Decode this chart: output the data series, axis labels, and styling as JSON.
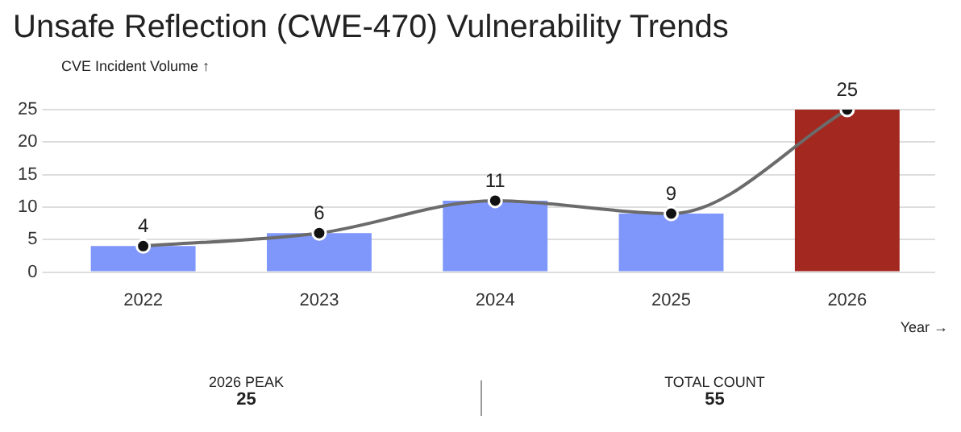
{
  "chart_data": {
    "type": "bar",
    "title": "Unsafe Reflection (CWE-470) Vulnerability Trends",
    "ylabel": "CVE Incident Volume ↑",
    "xlabel": "Year →",
    "categories": [
      "2022",
      "2023",
      "2024",
      "2025",
      "2026"
    ],
    "ylim": [
      0,
      25
    ],
    "yticks": [
      0,
      5,
      10,
      15,
      20,
      25
    ],
    "grid": "y",
    "legend": false,
    "marker": "circle",
    "series": [
      {
        "colors": [
          "#7f96fb",
          "#7f96fb",
          "#7f96fb",
          "#7f96fb",
          "#a3281f"
        ],
        "values": [
          4,
          6,
          11,
          9,
          25
        ]
      },
      {
        "type": "line",
        "color": "#6b6b6b",
        "values": [
          4,
          6,
          11,
          9,
          25
        ],
        "value_labels": [
          "4",
          "6",
          "11",
          "9",
          "25"
        ]
      }
    ],
    "annotations": [
      "2026 PEAK",
      "25",
      "TOTAL COUNT",
      "55"
    ]
  }
}
